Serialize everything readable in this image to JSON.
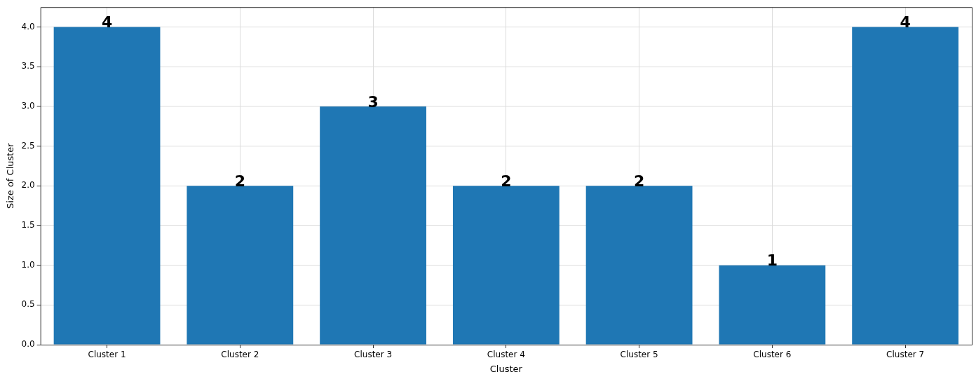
{
  "chart_data": {
    "type": "bar",
    "xlabel": "Cluster",
    "ylabel": "Size of Cluster",
    "categories": [
      "Cluster 1",
      "Cluster 2",
      "Cluster 3",
      "Cluster 4",
      "Cluster 5",
      "Cluster 6",
      "Cluster 7"
    ],
    "values": [
      4,
      2,
      3,
      2,
      2,
      1,
      4
    ],
    "color": "#1f77b4",
    "ylim": [
      0,
      4.25
    ],
    "yticks": [
      {
        "value": 0,
        "label": "0.0"
      },
      {
        "value": 0.5,
        "label": "0.5"
      },
      {
        "value": 1,
        "label": "1.0"
      },
      {
        "value": 1.5,
        "label": "1.5"
      },
      {
        "value": 2,
        "label": "2.0"
      },
      {
        "value": 2.5,
        "label": "2.5"
      },
      {
        "value": 3,
        "label": "3.0"
      },
      {
        "value": 3.5,
        "label": "3.5"
      },
      {
        "value": 4,
        "label": "4.0"
      }
    ],
    "grid": true,
    "data_labels": true
  }
}
